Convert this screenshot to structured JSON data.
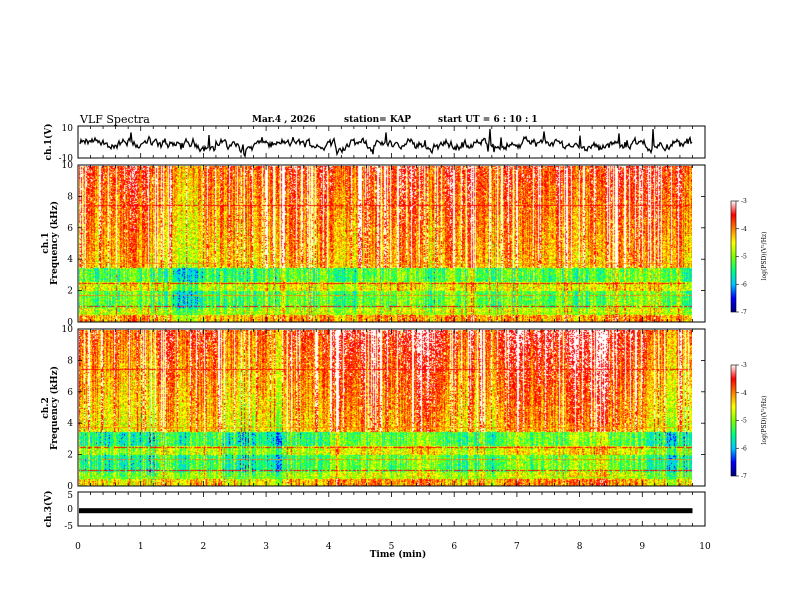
{
  "header": {
    "title": "VLF Spectra",
    "date": "Mar.4  , 2026",
    "station": "station= KAP",
    "start": "start  UT =   6  : 10 : 1"
  },
  "colors": {
    "spectrogram_scale": [
      "#000080",
      "#0000ff",
      "#00c8ff",
      "#00ff80",
      "#80ff00",
      "#ffff00",
      "#ff8000",
      "#ff0000",
      "#ffffff"
    ]
  },
  "chart_data": [
    {
      "type": "line",
      "name": "ch1-waveform",
      "ylabel": "ch.1(V)",
      "ylim": [
        -10,
        10
      ],
      "yticks": [
        "10",
        "-10"
      ],
      "xlim": [
        0,
        10
      ]
    },
    {
      "type": "heatmap",
      "name": "ch1-spectrogram",
      "ylabel": "ch.1\nFrequency  (kHz)",
      "ylim": [
        0,
        10
      ],
      "yticks": [
        "0",
        "2",
        "4",
        "6",
        "8",
        "10"
      ],
      "colorbar": {
        "label": "log(PSD)(V²/Hz)",
        "range": [
          -7,
          -3
        ],
        "ticks": [
          "-3",
          "-4",
          "-5",
          "-6",
          "-7"
        ]
      }
    },
    {
      "type": "heatmap",
      "name": "ch2-spectrogram",
      "ylabel": "ch.2\nFrequency  (kHz)",
      "ylim": [
        0,
        10
      ],
      "yticks": [
        "0",
        "2",
        "4",
        "6",
        "8",
        "10"
      ],
      "colorbar": {
        "label": "log(PSD)(V²/Hz)",
        "range": [
          -7,
          -3
        ],
        "ticks": [
          "-3",
          "-4",
          "-5",
          "-6",
          "-7"
        ]
      }
    },
    {
      "type": "line",
      "name": "ch3-signal",
      "ylabel": "ch.3(V)",
      "ylim": [
        -5,
        5
      ],
      "yticks": [
        "5",
        "0",
        "-5"
      ],
      "value": -0.5
    }
  ],
  "xaxis": {
    "label": "Time  (min)",
    "range": [
      0,
      10
    ],
    "data_end": 9.8,
    "ticks": [
      "0",
      "1",
      "2",
      "3",
      "4",
      "5",
      "6",
      "7",
      "8",
      "9",
      "10"
    ]
  },
  "ch1_line_label": "ch.1",
  "ch1_line_freq": "Frequency  (kHz)",
  "ch2_line_label": "ch.2",
  "ch2_line_freq": "Frequency  (kHz)"
}
